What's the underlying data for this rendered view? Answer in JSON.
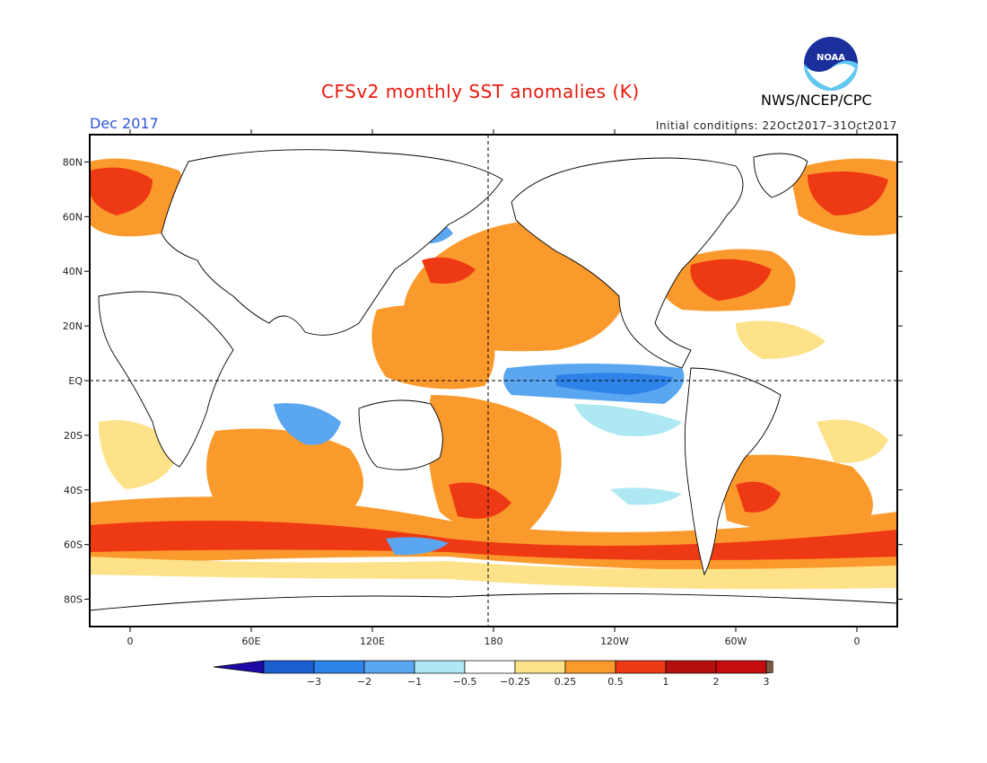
{
  "title": "CFSv2 monthly SST anomalies (K)",
  "agency": "NWS/NCEP/CPC",
  "logo_text": "NOAA",
  "valid_month": "Dec 2017",
  "initial_conditions": "Initial conditions: 22Oct2017–31Oct2017",
  "lat_labels": [
    {
      "label": "80N",
      "lat": 80
    },
    {
      "label": "60N",
      "lat": 60
    },
    {
      "label": "40N",
      "lat": 40
    },
    {
      "label": "20N",
      "lat": 20
    },
    {
      "label": "EQ",
      "lat": 0
    },
    {
      "label": "20S",
      "lat": -20
    },
    {
      "label": "40S",
      "lat": -40
    },
    {
      "label": "60S",
      "lat": -60
    },
    {
      "label": "80S",
      "lat": -80
    }
  ],
  "lon_labels": [
    {
      "label": "0",
      "lon": 0
    },
    {
      "label": "60E",
      "lon": 60
    },
    {
      "label": "120E",
      "lon": 120
    },
    {
      "label": "180",
      "lon": 180
    },
    {
      "label": "120W",
      "lon": 240
    },
    {
      "label": "60W",
      "lon": 300
    },
    {
      "label": "0",
      "lon": 360
    }
  ],
  "colorbar": {
    "colors": [
      "#1d0aa6",
      "#1c5fd1",
      "#2d83e8",
      "#5aa6f0",
      "#aee8f2",
      "#ffffff",
      "#fde28a",
      "#fb9a2c",
      "#ee3a14",
      "#b6100e",
      "#c60c0c",
      "#7a5a46"
    ],
    "labels": [
      "−3",
      "−2",
      "−1",
      "−0.5",
      "−0.25",
      "0.25",
      "0.5",
      "1",
      "2",
      "3"
    ]
  }
}
